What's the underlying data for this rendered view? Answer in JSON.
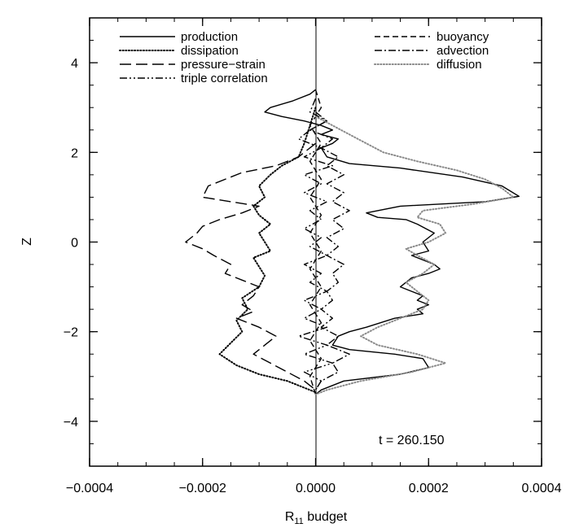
{
  "chart_data": {
    "type": "line",
    "xlabel_main": "R",
    "xlabel_sub": "11",
    "xlabel_rest": " budget",
    "ylabel": "Z",
    "xlim": [
      -0.0004,
      0.0004
    ],
    "ylim": [
      -5,
      5
    ],
    "xticks": [
      -0.0004,
      -0.0002,
      0.0,
      0.0002,
      0.0004
    ],
    "xtick_labels": [
      "−0.0004",
      "−0.0002",
      "0.0000",
      "0.0002",
      "0.0004"
    ],
    "yticks": [
      -4,
      -2,
      0,
      2,
      4
    ],
    "ytick_labels": [
      "−4",
      "−2",
      "0",
      "2",
      "4"
    ],
    "annotation": "t = 260.150",
    "grid": false,
    "legend_placement": "top",
    "series": [
      {
        "name": "production",
        "dash": "solid",
        "color": "#000000",
        "points": [
          [
            0,
            3.4
          ],
          [
            -1e-05,
            3.3
          ],
          [
            -4e-05,
            3.15
          ],
          [
            -8e-05,
            3.0
          ],
          [
            -9e-05,
            2.9
          ],
          [
            -6e-05,
            2.8
          ],
          [
            -2e-05,
            2.7
          ],
          [
            1e-05,
            2.6
          ],
          [
            3e-05,
            2.5
          ],
          [
            1e-05,
            2.4
          ],
          [
            4e-05,
            2.3
          ],
          [
            3e-05,
            2.2
          ],
          [
            1e-05,
            2.1
          ],
          [
            2e-05,
            1.9
          ],
          [
            6e-05,
            1.75
          ],
          [
            0.00015,
            1.65
          ],
          [
            0.00026,
            1.45
          ],
          [
            0.00033,
            1.25
          ],
          [
            0.00036,
            1.02
          ],
          [
            0.0003,
            0.9
          ],
          [
            0.00015,
            0.8
          ],
          [
            9e-05,
            0.65
          ],
          [
            0.00011,
            0.55
          ],
          [
            0.00016,
            0.5
          ],
          [
            0.00018,
            0.4
          ],
          [
            0.00021,
            0.2
          ],
          [
            0.0002,
            0.1
          ],
          [
            0.00019,
            0.0
          ],
          [
            0.0002,
            -0.2
          ],
          [
            0.00017,
            -0.3
          ],
          [
            0.00019,
            -0.4
          ],
          [
            0.00021,
            -0.5
          ],
          [
            0.00022,
            -0.6
          ],
          [
            0.0002,
            -0.7
          ],
          [
            0.00017,
            -0.8
          ],
          [
            0.00015,
            -1.0
          ],
          [
            0.00017,
            -1.1
          ],
          [
            0.00019,
            -1.2
          ],
          [
            0.00018,
            -1.3
          ],
          [
            0.0002,
            -1.4
          ],
          [
            0.00018,
            -1.5
          ],
          [
            0.00019,
            -1.6
          ],
          [
            0.00014,
            -1.7
          ],
          [
            9e-05,
            -1.9
          ],
          [
            6e-05,
            -2.0
          ],
          [
            4e-05,
            -2.1
          ],
          [
            3e-05,
            -2.3
          ],
          [
            6e-05,
            -2.4
          ],
          [
            0.00014,
            -2.5
          ],
          [
            0.00019,
            -2.6
          ],
          [
            0.0002,
            -2.8
          ],
          [
            0.00015,
            -2.95
          ],
          [
            5e-05,
            -3.1
          ],
          [
            1e-05,
            -3.3
          ],
          [
            0,
            -3.4
          ]
        ]
      },
      {
        "name": "dissipation",
        "dash": "dotted",
        "color": "#000000",
        "points": [
          [
            0,
            3.0
          ],
          [
            -1e-05,
            2.6
          ],
          [
            -2e-05,
            2.2
          ],
          [
            -3e-05,
            1.9
          ],
          [
            -6e-05,
            1.7
          ],
          [
            -8e-05,
            1.5
          ],
          [
            -0.0001,
            1.25
          ],
          [
            -9e-05,
            1.0
          ],
          [
            -0.00011,
            0.8
          ],
          [
            -0.0001,
            0.6
          ],
          [
            -8e-05,
            0.4
          ],
          [
            -0.0001,
            0.2
          ],
          [
            -9e-05,
            0.0
          ],
          [
            -8e-05,
            -0.2
          ],
          [
            -0.00011,
            -0.35
          ],
          [
            -0.0001,
            -0.55
          ],
          [
            -9e-05,
            -0.75
          ],
          [
            -0.0001,
            -1.0
          ],
          [
            -0.00013,
            -1.25
          ],
          [
            -0.00012,
            -1.5
          ],
          [
            -0.00014,
            -1.75
          ],
          [
            -0.00013,
            -2.0
          ],
          [
            -0.00015,
            -2.25
          ],
          [
            -0.00017,
            -2.5
          ],
          [
            -0.00014,
            -2.75
          ],
          [
            -0.0001,
            -2.95
          ],
          [
            -5e-05,
            -3.1
          ],
          [
            -2e-05,
            -3.25
          ],
          [
            0,
            -3.35
          ]
        ]
      },
      {
        "name": "pressure−strain",
        "dash": "longdash",
        "color": "#000000",
        "points": [
          [
            0,
            2.2
          ],
          [
            -3e-05,
            1.9
          ],
          [
            -7e-05,
            1.7
          ],
          [
            -0.00013,
            1.55
          ],
          [
            -0.00019,
            1.25
          ],
          [
            -0.0002,
            1.0
          ],
          [
            -0.00015,
            0.9
          ],
          [
            -0.0001,
            0.8
          ],
          [
            -0.00013,
            0.65
          ],
          [
            -0.00017,
            0.5
          ],
          [
            -0.0002,
            0.35
          ],
          [
            -0.00021,
            0.2
          ],
          [
            -0.00023,
            0.0
          ],
          [
            -0.0002,
            -0.15
          ],
          [
            -0.00018,
            -0.3
          ],
          [
            -0.00015,
            -0.5
          ],
          [
            -0.00016,
            -0.7
          ],
          [
            -0.00013,
            -0.85
          ],
          [
            -0.0001,
            -1.0
          ],
          [
            -0.00011,
            -1.2
          ],
          [
            -0.00013,
            -1.4
          ],
          [
            -0.00011,
            -1.55
          ],
          [
            -0.00014,
            -1.7
          ],
          [
            -0.0001,
            -1.9
          ],
          [
            -7e-05,
            -2.1
          ],
          [
            -9e-05,
            -2.3
          ],
          [
            -0.00011,
            -2.5
          ],
          [
            -8e-05,
            -2.7
          ],
          [
            -5e-05,
            -2.9
          ],
          [
            -2e-05,
            -3.1
          ],
          [
            0,
            -3.3
          ]
        ]
      },
      {
        "name": "triple correlation",
        "dash": "dashdotdot",
        "color": "#000000",
        "points": [
          [
            0,
            3.2
          ],
          [
            -1e-05,
            2.9
          ],
          [
            2e-05,
            2.7
          ],
          [
            -1e-05,
            2.5
          ],
          [
            -3e-05,
            2.3
          ],
          [
            1e-05,
            2.1
          ],
          [
            -2e-05,
            1.9
          ],
          [
            3e-05,
            1.7
          ],
          [
            -2e-05,
            1.5
          ],
          [
            1e-05,
            1.3
          ],
          [
            -2e-05,
            1.1
          ],
          [
            2e-05,
            0.9
          ],
          [
            -1e-05,
            0.7
          ],
          [
            1e-05,
            0.5
          ],
          [
            -2e-05,
            0.3
          ],
          [
            1e-05,
            0.1
          ],
          [
            -1e-05,
            -0.1
          ],
          [
            2e-05,
            -0.3
          ],
          [
            -2e-05,
            -0.5
          ],
          [
            1e-05,
            -0.7
          ],
          [
            -1e-05,
            -0.9
          ],
          [
            2e-05,
            -1.1
          ],
          [
            -2e-05,
            -1.3
          ],
          [
            1e-05,
            -1.5
          ],
          [
            -2e-05,
            -1.7
          ],
          [
            2e-05,
            -1.9
          ],
          [
            -3e-05,
            -2.1
          ],
          [
            2e-05,
            -2.3
          ],
          [
            -2e-05,
            -2.5
          ],
          [
            3e-05,
            -2.7
          ],
          [
            -2e-05,
            -2.9
          ],
          [
            1e-05,
            -3.1
          ],
          [
            0,
            -3.3
          ]
        ]
      },
      {
        "name": "buoyancy",
        "dash": "dash",
        "color": "#000000",
        "points": [
          [
            0,
            3.4
          ],
          [
            1e-05,
            3.0
          ],
          [
            -1e-05,
            2.6
          ],
          [
            1e-05,
            2.2
          ],
          [
            -1e-05,
            1.8
          ],
          [
            1e-05,
            1.4
          ],
          [
            -1e-05,
            1.0
          ],
          [
            1e-05,
            0.6
          ],
          [
            -1e-05,
            0.2
          ],
          [
            1e-05,
            -0.2
          ],
          [
            -1e-05,
            -0.6
          ],
          [
            1e-05,
            -1.0
          ],
          [
            -1e-05,
            -1.4
          ],
          [
            1e-05,
            -1.8
          ],
          [
            -1e-05,
            -2.2
          ],
          [
            1e-05,
            -2.6
          ],
          [
            -1e-05,
            -3.0
          ],
          [
            0,
            -3.4
          ]
        ]
      },
      {
        "name": "advection",
        "dash": "dashdot",
        "color": "#000000",
        "points": [
          [
            0,
            2.9
          ],
          [
            2e-05,
            2.7
          ],
          [
            -1e-05,
            2.5
          ],
          [
            3e-05,
            2.3
          ],
          [
            1e-05,
            2.1
          ],
          [
            4e-05,
            1.9
          ],
          [
            2e-05,
            1.7
          ],
          [
            5e-05,
            1.5
          ],
          [
            2e-05,
            1.3
          ],
          [
            5e-05,
            1.1
          ],
          [
            3e-05,
            0.9
          ],
          [
            6e-05,
            0.7
          ],
          [
            3e-05,
            0.5
          ],
          [
            5e-05,
            0.3
          ],
          [
            2e-05,
            0.1
          ],
          [
            4e-05,
            -0.1
          ],
          [
            2e-05,
            -0.3
          ],
          [
            5e-05,
            -0.5
          ],
          [
            3e-05,
            -0.7
          ],
          [
            4e-05,
            -0.9
          ],
          [
            2e-05,
            -1.1
          ],
          [
            3e-05,
            -1.3
          ],
          [
            1e-05,
            -1.5
          ],
          [
            3e-05,
            -1.7
          ],
          [
            1e-05,
            -1.9
          ],
          [
            4e-05,
            -2.1
          ],
          [
            2e-05,
            -2.3
          ],
          [
            6e-05,
            -2.5
          ],
          [
            3e-05,
            -2.7
          ],
          [
            4e-05,
            -2.9
          ],
          [
            1e-05,
            -3.1
          ],
          [
            0,
            -3.3
          ]
        ]
      },
      {
        "name": "diffusion",
        "dash": "dotted",
        "color": "#8a8a8a",
        "points": [
          [
            0,
            2.8
          ],
          [
            3e-05,
            2.6
          ],
          [
            6e-05,
            2.4
          ],
          [
            9e-05,
            2.2
          ],
          [
            0.00012,
            2.0
          ],
          [
            0.00018,
            1.8
          ],
          [
            0.00025,
            1.6
          ],
          [
            0.0003,
            1.4
          ],
          [
            0.00033,
            1.2
          ],
          [
            0.00035,
            1.0
          ],
          [
            0.00028,
            0.85
          ],
          [
            0.00019,
            0.7
          ],
          [
            0.00018,
            0.55
          ],
          [
            0.00022,
            0.4
          ],
          [
            0.00023,
            0.2
          ],
          [
            0.0002,
            0.0
          ],
          [
            0.00016,
            -0.15
          ],
          [
            0.00018,
            -0.3
          ],
          [
            0.00021,
            -0.5
          ],
          [
            0.00019,
            -0.7
          ],
          [
            0.00016,
            -0.9
          ],
          [
            0.00018,
            -1.1
          ],
          [
            0.0002,
            -1.3
          ],
          [
            0.00019,
            -1.5
          ],
          [
            0.00015,
            -1.7
          ],
          [
            0.00011,
            -1.9
          ],
          [
            8e-05,
            -2.1
          ],
          [
            0.00011,
            -2.3
          ],
          [
            0.00018,
            -2.5
          ],
          [
            0.00023,
            -2.7
          ],
          [
            0.00017,
            -2.9
          ],
          [
            8e-05,
            -3.1
          ],
          [
            2e-05,
            -3.3
          ],
          [
            0,
            -3.4
          ]
        ]
      }
    ]
  }
}
